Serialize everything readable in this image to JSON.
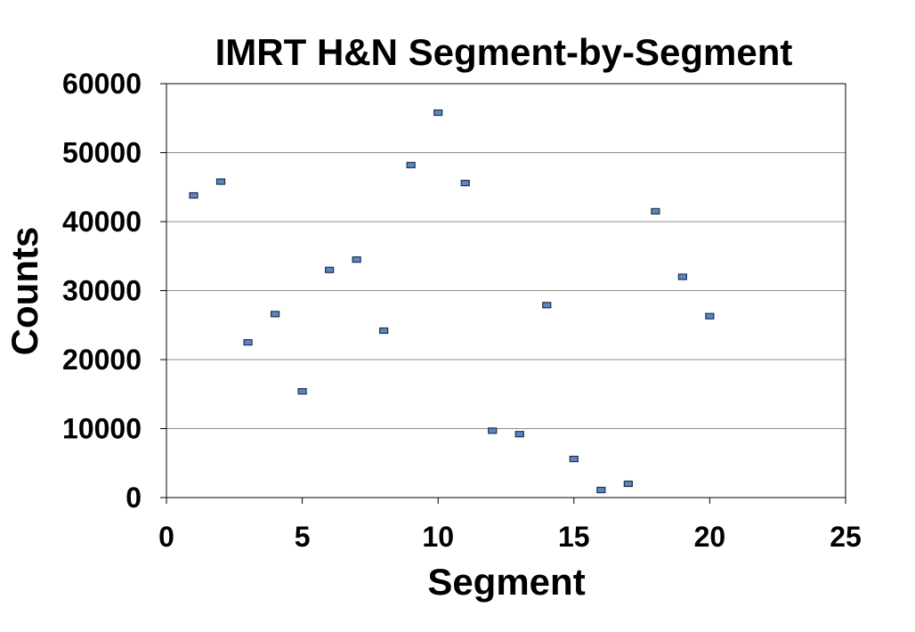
{
  "chart_data": {
    "type": "scatter",
    "title": "IMRT H&N Segment-by-Segment",
    "xlabel": "Segment",
    "ylabel": "Counts",
    "xlim": [
      0,
      25
    ],
    "ylim": [
      0,
      60000
    ],
    "x_ticks": [
      "0",
      "5",
      "10",
      "15",
      "20",
      "25"
    ],
    "y_ticks": [
      "0",
      "10000",
      "20000",
      "30000",
      "40000",
      "50000",
      "60000"
    ],
    "grid": true,
    "legend": "none",
    "marker_color": "#5b86c5",
    "marker_edge_color": "#1f3046",
    "series": [
      {
        "x": [
          1,
          2,
          3,
          4,
          5,
          6,
          7,
          8,
          9,
          10,
          11,
          12,
          13,
          14,
          15,
          16,
          17,
          18,
          19,
          20
        ],
        "y": [
          43800,
          45800,
          22500,
          26600,
          15400,
          33000,
          34500,
          24200,
          48200,
          55800,
          45600,
          9700,
          9200,
          27900,
          5600,
          1100,
          2000,
          41500,
          32000,
          26300
        ]
      }
    ]
  }
}
